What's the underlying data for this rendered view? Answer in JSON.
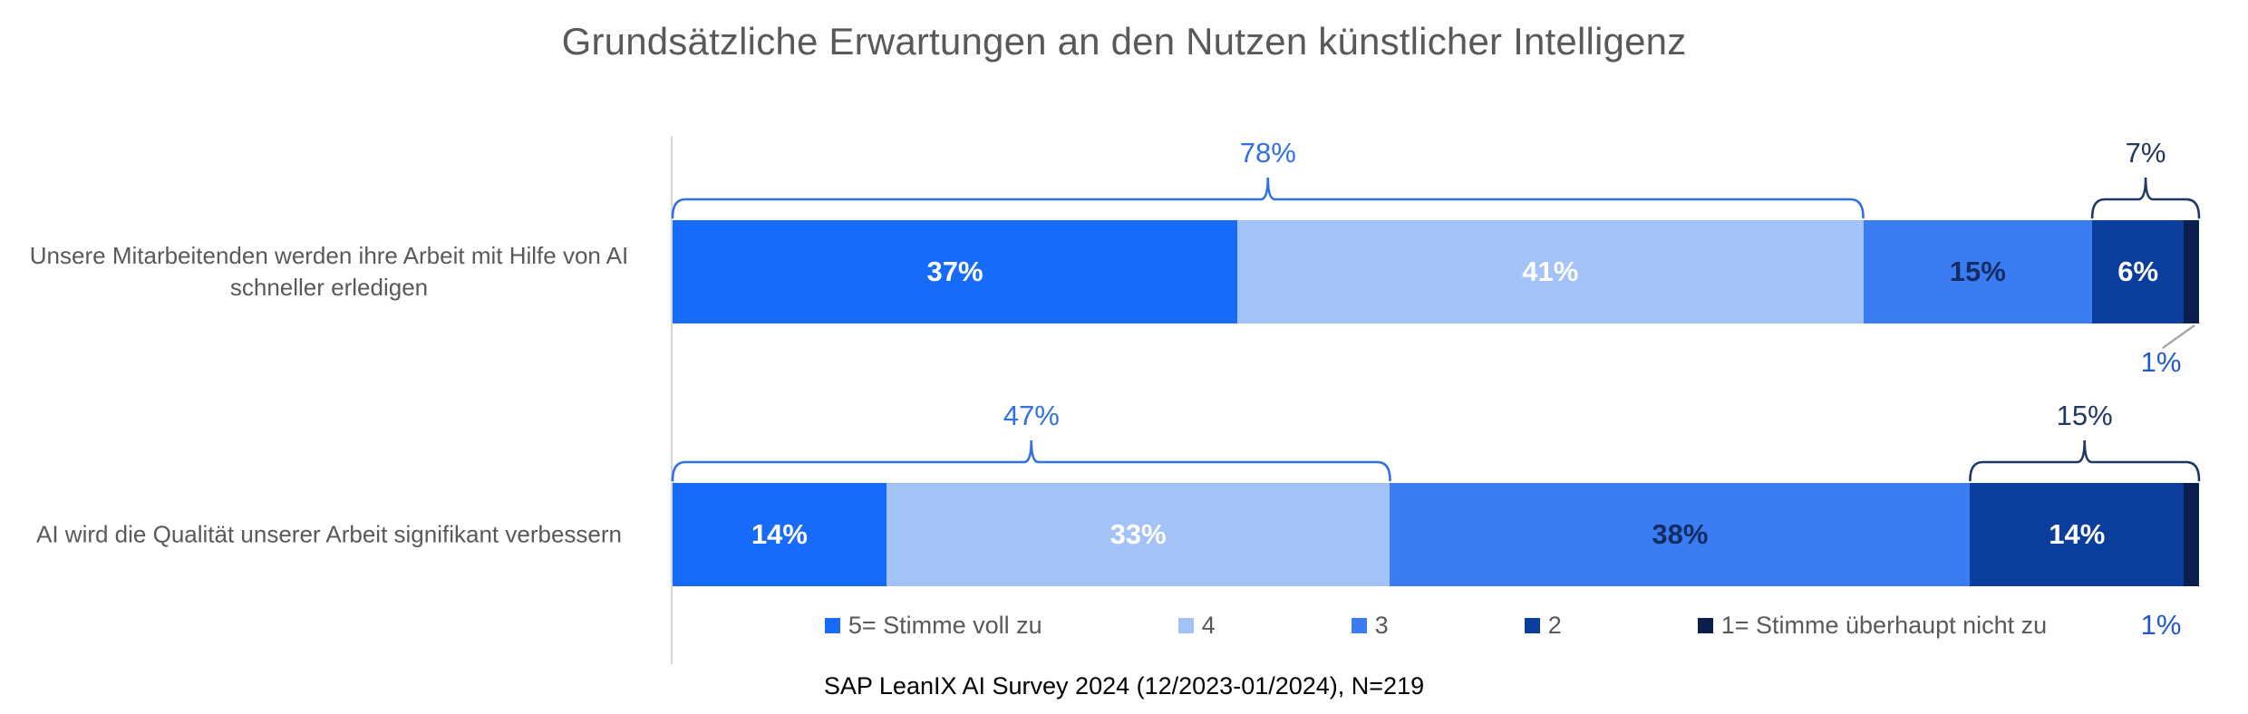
{
  "title": "Grundsätzliche Erwartungen an den Nutzen künstlicher Intelligenz",
  "footer": "SAP LeanIX AI Survey 2024 (12/2023-01/2024), N=219",
  "colors": {
    "title_text": "#595959",
    "category_text": "#595959",
    "legend_text": "#595959",
    "footer_text": "#000000",
    "axis_line": "#D6D6D6",
    "agree_sum_annotation": "#2F71E3",
    "disagree_sum_annotation": "#1F3864",
    "one_percent_callout": "#2159CC",
    "leader_line": "#A6A6A6"
  },
  "chart_data": {
    "type": "bar",
    "orientation": "horizontal",
    "stacked": true,
    "unit": "%",
    "xlim": [
      0,
      100
    ],
    "grid": false,
    "legend_position": "bottom",
    "series": [
      {
        "name": "5= Stimme voll zu",
        "color": "#176BF8",
        "label_color": "#FFFFFF"
      },
      {
        "name": "4",
        "color": "#A3C2F7",
        "label_color": "#FFFFFF"
      },
      {
        "name": "3",
        "color": "#3C7CF2",
        "label_color": "#112D63"
      },
      {
        "name": "2",
        "color": "#0A3D9C",
        "label_color": "#FFFFFF"
      },
      {
        "name": "1= Stimme überhaupt nicht zu",
        "color": "#0A1F4D",
        "label_color": "#FFFFFF"
      }
    ],
    "categories": [
      "Unsere Mitarbeitenden werden ihre Arbeit mit Hilfe von AI schneller erledigen",
      "AI wird die Qualität unserer Arbeit signifikant verbessern"
    ],
    "rows": [
      {
        "category": "Unsere Mitarbeitenden werden ihre Arbeit mit Hilfe von AI schneller erledigen",
        "values": [
          37,
          41,
          15,
          6,
          1
        ],
        "agree_sum": {
          "label": "78%",
          "value": 78,
          "segments": [
            0,
            1
          ]
        },
        "disagree_sum": {
          "label": "7%",
          "value": 7,
          "segments": [
            3,
            4
          ]
        },
        "callout": {
          "label": "1%",
          "value": 1,
          "segment": 4,
          "leader_line": true
        }
      },
      {
        "category": "AI wird die Qualität unserer Arbeit signifikant verbessern",
        "values": [
          14,
          33,
          38,
          14,
          1
        ],
        "agree_sum": {
          "label": "47%",
          "value": 47,
          "segments": [
            0,
            1
          ]
        },
        "disagree_sum": {
          "label": "15%",
          "value": 15,
          "segments": [
            3,
            4
          ]
        },
        "callout": {
          "label": "1%",
          "value": 1,
          "segment": 4,
          "leader_line": false
        }
      }
    ]
  }
}
